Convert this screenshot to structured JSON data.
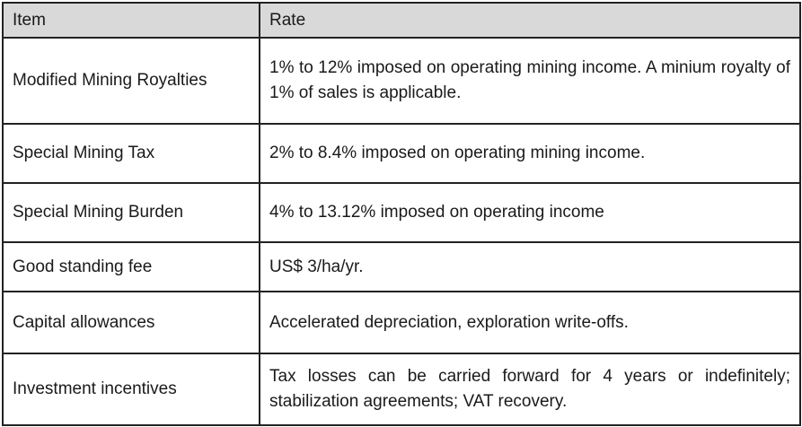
{
  "table": {
    "headers": {
      "item": "Item",
      "rate": "Rate"
    },
    "rows": [
      {
        "item": "Modified Mining Royalties",
        "rate": "1% to 12% imposed on operating mining income. A minium royalty of 1% of sales is applicable."
      },
      {
        "item": "Special Mining Tax",
        "rate": "2% to 8.4% imposed on operating mining income."
      },
      {
        "item": "Special Mining Burden",
        "rate": "4% to 13.12% imposed on operating income"
      },
      {
        "item": "Good standing fee",
        "rate": "US$ 3/ha/yr."
      },
      {
        "item": "Capital allowances",
        "rate": "Accelerated depreciation, exploration write-offs."
      },
      {
        "item": "Investment incentives",
        "rate": "Tax losses can be carried forward for 4 years or indefinitely; stabilization agreements; VAT recovery."
      }
    ]
  },
  "colors": {
    "header_background": "#d9d9d9",
    "border": "#222222",
    "text": "#1a1a1a"
  }
}
